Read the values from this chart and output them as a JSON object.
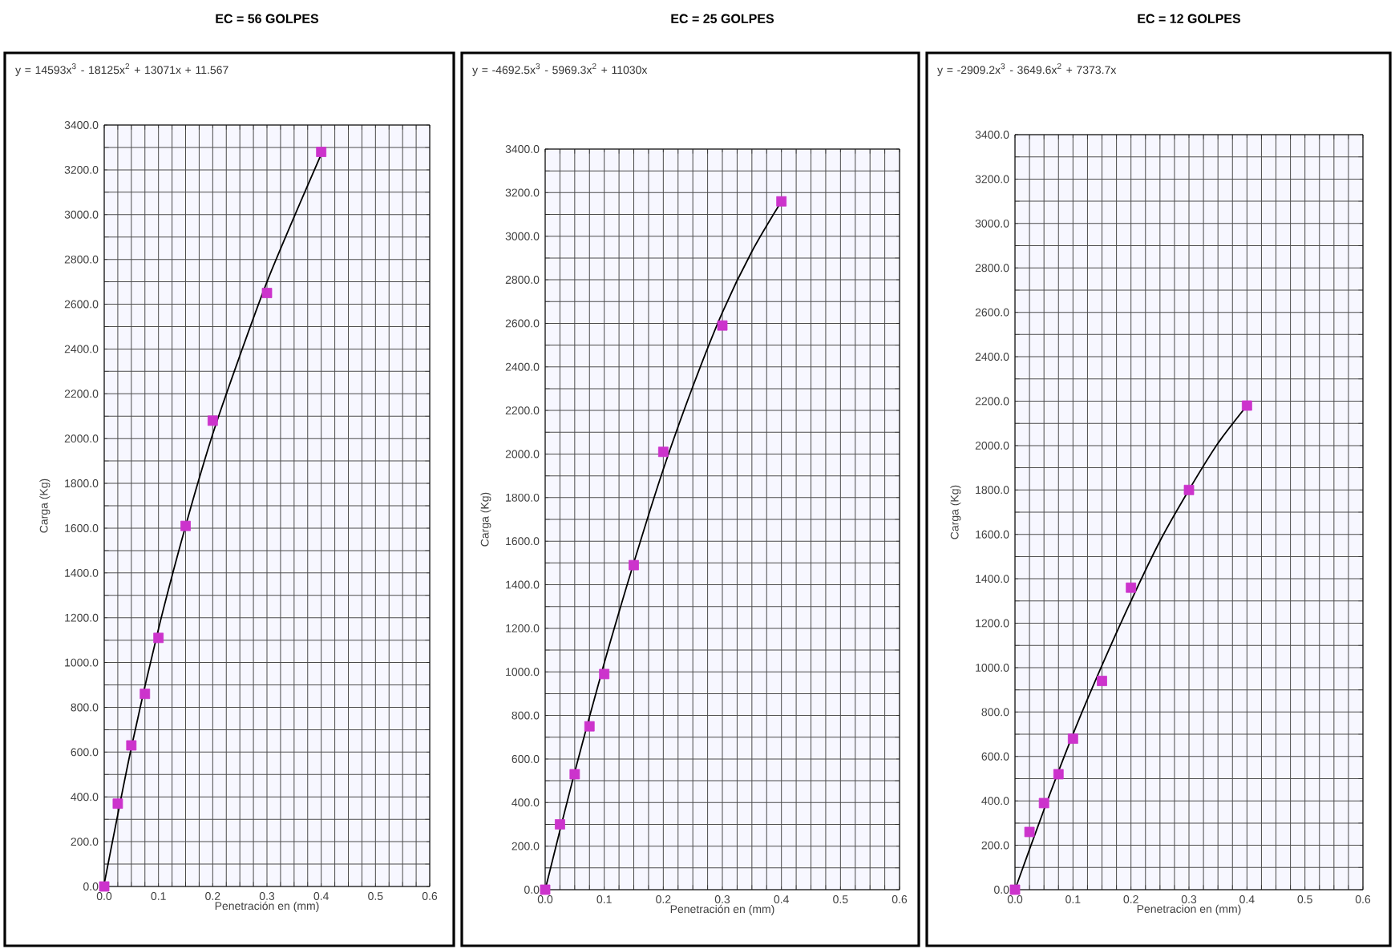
{
  "chart_data": [
    {
      "type": "scatter",
      "title": "EC = 56 GOLPES",
      "xlabel": "Penetración en (mm)",
      "ylabel": "Carga (Kg)",
      "annotations": [
        "y = 14593x$^{3}$ - 18125x$^{2}$ + 13071x + 11.567"
      ],
      "x": [
        0,
        0.025,
        0.05,
        0.075,
        0.1,
        0.15,
        0.2,
        0.3,
        0.4
      ],
      "series": [
        {
          "color": "#cc33cc",
          "marker": "square",
          "values": [
            0,
            370,
            630,
            860,
            1110,
            1610,
            2080,
            2650,
            3280
          ]
        },
        {
          "type": "line",
          "color": "#000000",
          "marker": "none",
          "x": [
            0,
            0.05,
            0.1,
            0.15,
            0.2,
            0.25,
            0.3,
            0.35,
            0.4
          ],
          "values": [
            12,
            620,
            1150,
            1610,
            2020,
            2370,
            2700,
            2990,
            3270
          ]
        }
      ],
      "xlim": [
        0,
        0.6
      ],
      "ylim": [
        0,
        3400
      ],
      "xticks": [
        {
          "value": 0,
          "label": "0.0"
        },
        {
          "value": 0.1,
          "label": "0.1"
        },
        {
          "value": 0.2,
          "label": "0.2"
        },
        {
          "value": 0.3,
          "label": "0.3"
        },
        {
          "value": 0.4,
          "label": "0.4"
        },
        {
          "value": 0.5,
          "label": "0.5"
        },
        {
          "value": 0.6,
          "label": "0.6"
        }
      ],
      "yticks": [
        {
          "value": 0,
          "label": "0.0"
        },
        {
          "value": 200,
          "label": "200.0"
        },
        {
          "value": 400,
          "label": "400.0"
        },
        {
          "value": 600,
          "label": "600.0"
        },
        {
          "value": 800,
          "label": "800.0"
        },
        {
          "value": 1000,
          "label": "1000.0"
        },
        {
          "value": 1200,
          "label": "1200.0"
        },
        {
          "value": 1400,
          "label": "1400.0"
        },
        {
          "value": 1600,
          "label": "1600.0"
        },
        {
          "value": 1800,
          "label": "1800.0"
        },
        {
          "value": 2000,
          "label": "2000.0"
        },
        {
          "value": 2200,
          "label": "2200.0"
        },
        {
          "value": 2400,
          "label": "2400.0"
        },
        {
          "value": 2600,
          "label": "2600.0"
        },
        {
          "value": 2800,
          "label": "2800.0"
        },
        {
          "value": 3000,
          "label": "3000.0"
        },
        {
          "value": 3200,
          "label": "3200.0"
        },
        {
          "value": 3400,
          "label": "3400.0"
        }
      ],
      "grid": true
    },
    {
      "type": "scatter",
      "title": "EC = 25 GOLPES",
      "xlabel": "Penetración en (mm)",
      "ylabel": "Carga (Kg)",
      "annotations": [
        "y = -4692.5x$^{3}$ - 5969.3x$^{2}$ + 11030x"
      ],
      "x": [
        0,
        0.025,
        0.05,
        0.075,
        0.1,
        0.15,
        0.2,
        0.3,
        0.4
      ],
      "series": [
        {
          "color": "#cc33cc",
          "marker": "square",
          "values": [
            0,
            300,
            530,
            750,
            990,
            1490,
            2010,
            2590,
            3160
          ]
        },
        {
          "type": "line",
          "color": "#000000",
          "marker": "none",
          "x": [
            0,
            0.05,
            0.1,
            0.15,
            0.2,
            0.25,
            0.3,
            0.35,
            0.4
          ],
          "values": [
            0,
            540,
            1040,
            1500,
            1930,
            2310,
            2650,
            2930,
            3160
          ]
        }
      ],
      "xlim": [
        0,
        0.6
      ],
      "ylim": [
        0,
        3400
      ],
      "xticks": [
        {
          "value": 0,
          "label": "0.0"
        },
        {
          "value": 0.1,
          "label": "0.1"
        },
        {
          "value": 0.2,
          "label": "0.2"
        },
        {
          "value": 0.3,
          "label": "0.3"
        },
        {
          "value": 0.4,
          "label": "0.4"
        },
        {
          "value": 0.5,
          "label": "0.5"
        },
        {
          "value": 0.6,
          "label": "0.6"
        }
      ],
      "yticks": [
        {
          "value": 0,
          "label": "0.0"
        },
        {
          "value": 200,
          "label": "200.0"
        },
        {
          "value": 400,
          "label": "400.0"
        },
        {
          "value": 600,
          "label": "600.0"
        },
        {
          "value": 800,
          "label": "800.0"
        },
        {
          "value": 1000,
          "label": "1000.0"
        },
        {
          "value": 1200,
          "label": "1200.0"
        },
        {
          "value": 1400,
          "label": "1400.0"
        },
        {
          "value": 1600,
          "label": "1600.0"
        },
        {
          "value": 1800,
          "label": "1800.0"
        },
        {
          "value": 2000,
          "label": "2000.0"
        },
        {
          "value": 2200,
          "label": "2200.0"
        },
        {
          "value": 2400,
          "label": "2400.0"
        },
        {
          "value": 2600,
          "label": "2600.0"
        },
        {
          "value": 2800,
          "label": "2800.0"
        },
        {
          "value": 3000,
          "label": "3000.0"
        },
        {
          "value": 3200,
          "label": "3200.0"
        },
        {
          "value": 3400,
          "label": "3400.0"
        }
      ],
      "grid": true
    },
    {
      "type": "scatter",
      "title": "EC = 12 GOLPES",
      "xlabel": "Penetracion en (mm)",
      "ylabel": "Carga (Kg)",
      "annotations": [
        "y = -2909.2x$^{3}$ - 3649.6x$^{2}$ + 7373.7x"
      ],
      "x": [
        0,
        0.025,
        0.05,
        0.075,
        0.1,
        0.15,
        0.2,
        0.3,
        0.4
      ],
      "series": [
        {
          "color": "#cc33cc",
          "marker": "square",
          "values": [
            0,
            260,
            390,
            520,
            680,
            940,
            1360,
            1800,
            2180
          ]
        },
        {
          "type": "line",
          "color": "#000000",
          "marker": "none",
          "x": [
            0,
            0.05,
            0.1,
            0.15,
            0.2,
            0.25,
            0.3,
            0.35,
            0.4
          ],
          "values": [
            0,
            360,
            700,
            1010,
            1300,
            1570,
            1800,
            2010,
            2180
          ]
        }
      ],
      "xlim": [
        0,
        0.6
      ],
      "ylim": [
        0,
        3400
      ],
      "xticks": [
        {
          "value": 0,
          "label": "0.0"
        },
        {
          "value": 0.1,
          "label": "0.1"
        },
        {
          "value": 0.2,
          "label": "0.2"
        },
        {
          "value": 0.3,
          "label": "0.3"
        },
        {
          "value": 0.4,
          "label": "0.4"
        },
        {
          "value": 0.5,
          "label": "0.5"
        },
        {
          "value": 0.6,
          "label": "0.6"
        }
      ],
      "yticks": [
        {
          "value": 0,
          "label": "0.0"
        },
        {
          "value": 200,
          "label": "200.0"
        },
        {
          "value": 400,
          "label": "400.0"
        },
        {
          "value": 600,
          "label": "600.0"
        },
        {
          "value": 800,
          "label": "800.0"
        },
        {
          "value": 1000,
          "label": "1000.0"
        },
        {
          "value": 1200,
          "label": "1200.0"
        },
        {
          "value": 1400,
          "label": "1400.0"
        },
        {
          "value": 1600,
          "label": "1600.0"
        },
        {
          "value": 1800,
          "label": "1800.0"
        },
        {
          "value": 2000,
          "label": "2000.0"
        },
        {
          "value": 2200,
          "label": "2200.0"
        },
        {
          "value": 2400,
          "label": "2400.0"
        },
        {
          "value": 2600,
          "label": "2600.0"
        },
        {
          "value": 2800,
          "label": "2800.0"
        },
        {
          "value": 3000,
          "label": "3000.0"
        },
        {
          "value": 3200,
          "label": "3200.0"
        },
        {
          "value": 3400,
          "label": "3400.0"
        }
      ],
      "grid": true
    }
  ]
}
